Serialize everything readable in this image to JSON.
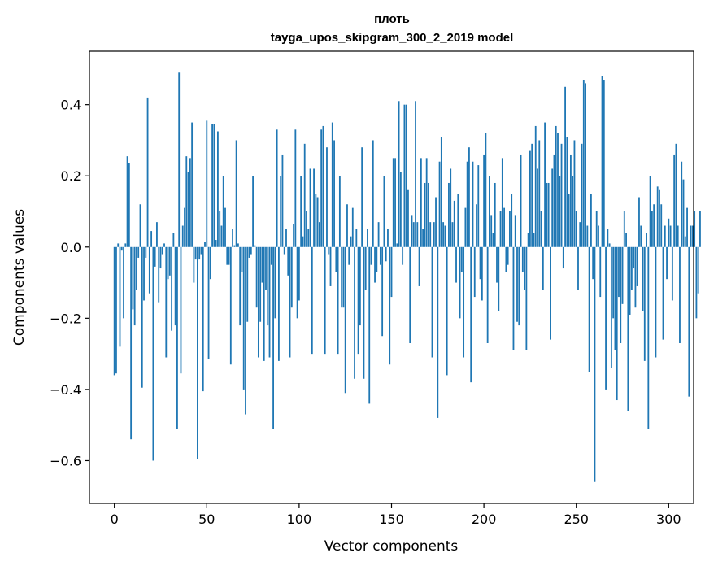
{
  "chart_data": {
    "type": "bar",
    "title_lines": [
      "плоть",
      "tayga_upos_skipgram_300_2_2019 model"
    ],
    "xlabel": "Vector components",
    "ylabel": "Components values",
    "xlim": [
      -13.5,
      313.5
    ],
    "ylim": [
      -0.72,
      0.55
    ],
    "xticks": [
      0,
      50,
      100,
      150,
      200,
      250,
      300
    ],
    "yticks": [
      -0.6,
      -0.4,
      -0.2,
      0.0,
      0.2,
      0.4
    ],
    "ytick_labels": [
      "−0.6",
      "−0.4",
      "−0.2",
      "0.0",
      "0.2",
      "0.4"
    ],
    "bar_color": "#1f77b4",
    "values": [
      -0.36,
      -0.355,
      0.01,
      -0.28,
      -0.01,
      -0.2,
      0.01,
      0.255,
      0.235,
      -0.54,
      -0.175,
      -0.22,
      -0.12,
      -0.03,
      0.12,
      -0.395,
      -0.15,
      -0.03,
      0.42,
      -0.13,
      0.045,
      -0.6,
      -0.055,
      0.07,
      -0.155,
      -0.06,
      -0.02,
      0.01,
      -0.31,
      -0.09,
      -0.08,
      -0.235,
      0.04,
      -0.22,
      -0.51,
      0.49,
      -0.355,
      0.06,
      0.11,
      0.255,
      0.21,
      0.25,
      0.35,
      -0.1,
      -0.035,
      -0.595,
      -0.035,
      -0.02,
      -0.405,
      0.015,
      0.355,
      -0.315,
      -0.09,
      0.345,
      0.345,
      0.02,
      0.325,
      0.1,
      0.06,
      0.2,
      0.11,
      -0.05,
      -0.05,
      -0.33,
      0.05,
      0.005,
      0.3,
      0.01,
      -0.22,
      -0.07,
      -0.4,
      -0.47,
      -0.21,
      -0.03,
      -0.02,
      0.2,
      0.005,
      -0.17,
      -0.31,
      -0.21,
      -0.1,
      -0.32,
      -0.12,
      -0.22,
      -0.31,
      -0.05,
      -0.51,
      -0.2,
      0.33,
      -0.32,
      0.2,
      0.26,
      -0.02,
      0.05,
      -0.08,
      -0.31,
      -0.17,
      0.065,
      0.33,
      -0.2,
      -0.15,
      0.2,
      0.03,
      0.29,
      0.1,
      0.05,
      0.22,
      -0.3,
      0.22,
      0.15,
      0.14,
      0.07,
      0.33,
      0.34,
      -0.3,
      0.28,
      -0.02,
      -0.11,
      0.35,
      0.3,
      -0.07,
      -0.3,
      0.2,
      -0.17,
      -0.17,
      -0.41,
      0.12,
      -0.05,
      0.03,
      0.11,
      -0.37,
      0.05,
      -0.3,
      -0.22,
      0.28,
      -0.37,
      -0.12,
      0.05,
      -0.44,
      -0.05,
      0.3,
      -0.1,
      -0.07,
      0.07,
      -0.05,
      -0.25,
      0.2,
      -0.04,
      0.05,
      -0.33,
      -0.14,
      0.25,
      0.25,
      0.01,
      0.41,
      0.21,
      -0.05,
      0.4,
      0.4,
      0.16,
      -0.27,
      0.09,
      0.07,
      0.41,
      0.07,
      -0.11,
      0.25,
      0.05,
      0.18,
      0.25,
      0.18,
      0.07,
      -0.31,
      0.07,
      0.14,
      -0.48,
      0.24,
      0.31,
      0.07,
      0.06,
      -0.36,
      0.18,
      0.22,
      0.07,
      0.13,
      -0.1,
      0.15,
      -0.2,
      -0.07,
      -0.31,
      0.11,
      0.24,
      0.28,
      -0.38,
      0.24,
      -0.14,
      0.12,
      0.23,
      -0.09,
      -0.15,
      0.26,
      0.32,
      -0.27,
      0.2,
      0.09,
      0.04,
      0.18,
      -0.1,
      -0.18,
      0.1,
      0.25,
      0.11,
      -0.07,
      -0.05,
      0.1,
      0.15,
      -0.29,
      0.09,
      -0.21,
      -0.22,
      0.26,
      -0.07,
      -0.12,
      -0.29,
      0.04,
      0.27,
      0.29,
      0.04,
      0.34,
      0.22,
      0.3,
      0.1,
      -0.12,
      0.35,
      0.18,
      0.18,
      -0.26,
      0.22,
      0.26,
      0.34,
      0.32,
      0.2,
      0.29,
      -0.06,
      0.45,
      0.31,
      0.15,
      0.26,
      0.2,
      0.3,
      0.1,
      -0.12,
      0.07,
      0.29,
      0.47,
      0.46,
      0.06,
      -0.35,
      0.15,
      -0.09,
      -0.66,
      0.1,
      0.06,
      -0.14,
      0.48,
      0.47,
      -0.4,
      0.05,
      0.01,
      -0.34,
      -0.2,
      -0.29,
      -0.43,
      -0.14,
      -0.27,
      -0.16,
      0.1,
      0.04,
      -0.46,
      -0.19,
      -0.12,
      -0.06,
      -0.17,
      -0.11,
      0.14,
      0.06,
      -0.18,
      -0.32,
      0.04,
      -0.51,
      0.2,
      0.1,
      0.12,
      -0.31,
      0.17,
      0.16,
      0.12,
      -0.26,
      0.06,
      -0.09,
      0.08,
      0.06,
      -0.15,
      0.26,
      0.29,
      0.06,
      -0.27,
      0.24,
      0.19,
      0.03,
      0.11,
      -0.42,
      0.06,
      0.06,
      0.1,
      -0.2,
      -0.13,
      0.1
    ]
  }
}
